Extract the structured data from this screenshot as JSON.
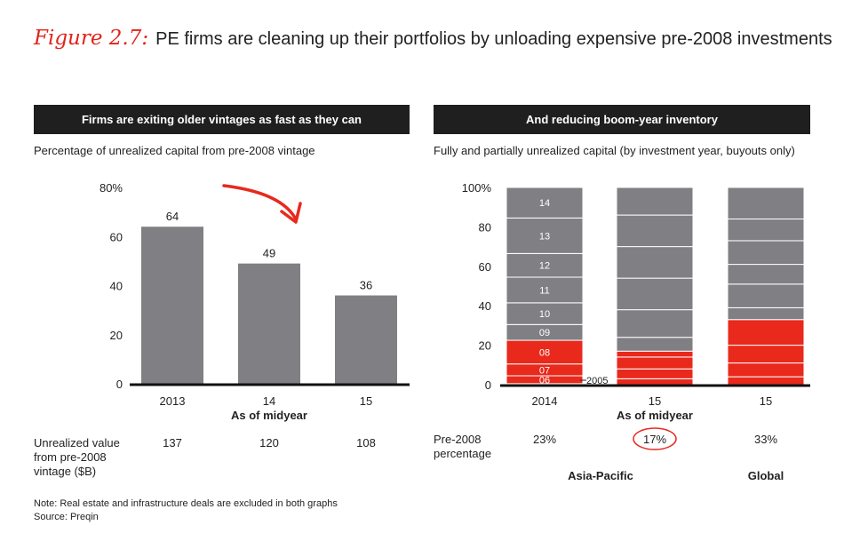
{
  "figure": {
    "label": "Figure 2.7:",
    "title": "PE firms are cleaning up their portfolios by unloading expensive pre-2008 investments"
  },
  "colors": {
    "bar_gray": "#807f83",
    "accent_red": "#e8291c",
    "header_bg": "#1f1f1f"
  },
  "chart_data": [
    {
      "type": "bar",
      "panel_title": "Firms are exiting older vintages as fast as they can",
      "subtitle": "Percentage of unrealized capital from pre-2008 vintage",
      "categories": [
        "2013",
        "14",
        "15"
      ],
      "values": [
        64,
        49,
        36
      ],
      "data_labels": [
        "64",
        "49",
        "36"
      ],
      "ylim": [
        0,
        80
      ],
      "yticks": [
        "0",
        "20",
        "40",
        "60",
        "80%"
      ],
      "xlabel": "As of midyear",
      "annotation": "downward-arrow",
      "table": {
        "row_label": [
          "Unrealized value",
          "from pre-2008",
          "vintage ($B)"
        ],
        "values": [
          "137",
          "120",
          "108"
        ]
      }
    },
    {
      "type": "stacked-bar",
      "panel_title": "And reducing boom-year inventory",
      "subtitle": "Fully and partially unrealized capital (by investment year, buyouts only)",
      "categories": [
        "2014",
        "15",
        "15"
      ],
      "groups": [
        "Asia-Pacific",
        "Global"
      ],
      "xlabel": "As of midyear",
      "ylim": [
        0,
        100
      ],
      "yticks": [
        "0",
        "20",
        "40",
        "60",
        "80",
        "100%"
      ],
      "pre2008_share": [
        23,
        17,
        33
      ],
      "series_order_bottom_to_top": [
        "2005",
        "06",
        "07",
        "08",
        "09",
        "10",
        "11",
        "12",
        "13",
        "14"
      ],
      "segment_bounds_first_bar": [
        0,
        0.5,
        4.5,
        10.5,
        22.5,
        30.5,
        41.5,
        54.5,
        66.5,
        84.5,
        100
      ],
      "segment_bounds_second_bar": [
        0,
        3,
        8,
        14,
        17,
        24,
        38,
        54,
        70,
        86,
        100
      ],
      "segment_bounds_third_bar": [
        0,
        4,
        11,
        20,
        33,
        39,
        51,
        61,
        73,
        84,
        100
      ],
      "segment_labels_first_bar": [
        "2005",
        "06",
        "07",
        "08",
        "09",
        "10",
        "11",
        "12",
        "13",
        "14"
      ],
      "table": {
        "row_label": [
          "Pre-2008",
          "percentage"
        ],
        "values": [
          "23%",
          "17%",
          "33%"
        ],
        "highlighted": "17%"
      }
    }
  ],
  "note": {
    "line1": "Note: Real estate and infrastructure deals are excluded in both graphs",
    "line2": "Source: Preqin"
  }
}
